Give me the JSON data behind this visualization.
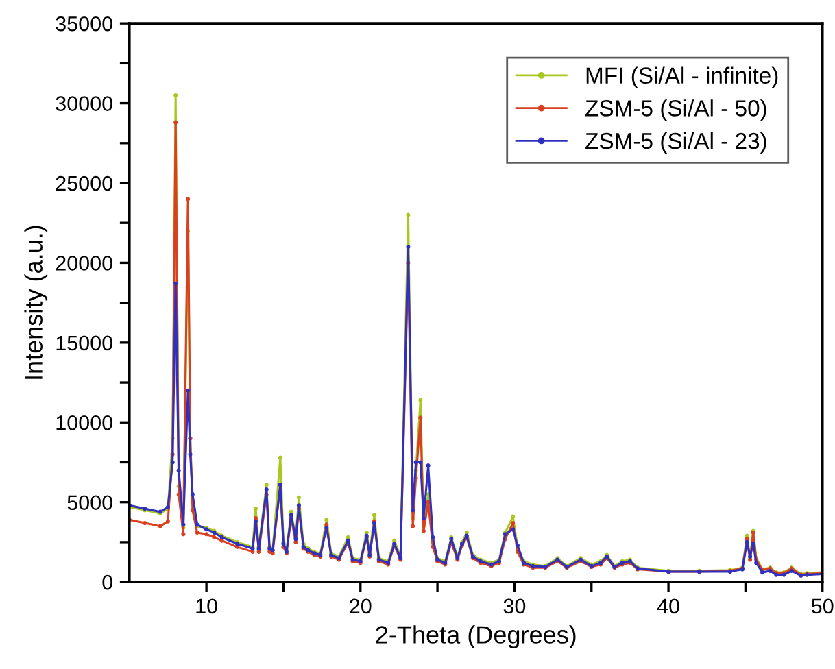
{
  "chart_data": {
    "type": "line",
    "xlabel": "2-Theta (Degrees)",
    "ylabel": "Intensity (a.u.)",
    "x": [
      5,
      6,
      7,
      7.5,
      7.8,
      8.0,
      8.2,
      8.5,
      8.8,
      8.95,
      9.1,
      9.4,
      10,
      10.5,
      11,
      12,
      13,
      13.2,
      13.4,
      13.9,
      14.1,
      14.3,
      14.8,
      15.0,
      15.2,
      15.5,
      15.8,
      16.0,
      16.3,
      16.6,
      17.0,
      17.4,
      17.8,
      18.1,
      18.6,
      19.2,
      19.5,
      20.0,
      20.4,
      20.6,
      20.9,
      21.2,
      21.8,
      22.2,
      22.6,
      23.1,
      23.4,
      23.6,
      23.9,
      24.1,
      24.4,
      24.7,
      25.0,
      25.5,
      25.9,
      26.3,
      26.6,
      26.9,
      27.3,
      27.8,
      28.5,
      29.0,
      29.4,
      29.9,
      30.2,
      30.6,
      31.2,
      32.0,
      32.8,
      33.4,
      34.3,
      35.0,
      35.6,
      36.0,
      36.5,
      37.0,
      37.5,
      38.0,
      40,
      42,
      44,
      44.8,
      45.1,
      45.3,
      45.5,
      45.7,
      46.1,
      46.6,
      47.0,
      47.5,
      48.0,
      48.6,
      49.0,
      50
    ],
    "series": [
      {
        "name": "MFI (Si/Al - infinite)",
        "color": "#a8c820",
        "values": [
          4700,
          4500,
          4300,
          4600,
          9000,
          30500,
          6000,
          3400,
          22000,
          9000,
          5000,
          3500,
          3400,
          3200,
          2900,
          2500,
          2200,
          4600,
          2200,
          6100,
          2200,
          2000,
          7800,
          2500,
          2000,
          4400,
          2800,
          5300,
          2400,
          2100,
          1900,
          1800,
          3900,
          1800,
          1600,
          2800,
          1500,
          1400,
          3100,
          1800,
          4200,
          1500,
          1300,
          2600,
          1600,
          23000,
          4000,
          7000,
          11400,
          3500,
          5500,
          2500,
          1500,
          1300,
          2800,
          1600,
          2500,
          3100,
          1700,
          1400,
          1200,
          1400,
          3100,
          4100,
          2200,
          1300,
          1100,
          1000,
          1500,
          1000,
          1500,
          1100,
          1300,
          1700,
          1000,
          1300,
          1400,
          900,
          700,
          700,
          750,
          900,
          2900,
          1500,
          3200,
          1500,
          800,
          900,
          600,
          600,
          900,
          500,
          550,
          600
        ]
      },
      {
        "name": "ZSM-5 (Si/Al - 50)",
        "color": "#d84020",
        "values": [
          3900,
          3700,
          3500,
          3800,
          8000,
          28800,
          5500,
          3000,
          24000,
          9000,
          4500,
          3100,
          3000,
          2800,
          2600,
          2200,
          1900,
          4000,
          1900,
          5500,
          1900,
          1800,
          6100,
          2200,
          1800,
          4000,
          2500,
          4600,
          2100,
          1900,
          1700,
          1600,
          3600,
          1600,
          1400,
          2500,
          1300,
          1200,
          2800,
          1600,
          3800,
          1300,
          1100,
          2300,
          1400,
          20000,
          3500,
          6500,
          10300,
          3200,
          5000,
          2200,
          1300,
          1100,
          2500,
          1400,
          2300,
          2800,
          1500,
          1200,
          1000,
          1200,
          2700,
          3700,
          1900,
          1100,
          900,
          900,
          1300,
          900,
          1300,
          950,
          1100,
          1500,
          900,
          1100,
          1200,
          800,
          650,
          650,
          700,
          850,
          2700,
          1400,
          3100,
          1400,
          750,
          850,
          550,
          550,
          850,
          450,
          500,
          550
        ]
      },
      {
        "name": "ZSM-5 (Si/Al - 23)",
        "color": "#3030c0",
        "values": [
          4800,
          4600,
          4400,
          4700,
          7500,
          18700,
          7000,
          3600,
          12000,
          8000,
          5500,
          3600,
          3300,
          3100,
          2800,
          2400,
          2100,
          3800,
          2100,
          5800,
          2100,
          2000,
          6100,
          2400,
          1900,
          4200,
          2700,
          4800,
          2200,
          2000,
          1800,
          1700,
          3400,
          1700,
          1500,
          2600,
          1400,
          1300,
          2900,
          1700,
          3700,
          1400,
          1200,
          2400,
          1500,
          21000,
          4500,
          7500,
          7500,
          4000,
          7300,
          2800,
          1400,
          1200,
          2700,
          1500,
          2400,
          2900,
          1600,
          1300,
          1100,
          1300,
          3000,
          3300,
          2300,
          1200,
          1000,
          950,
          1400,
          950,
          1400,
          1000,
          1200,
          1600,
          950,
          1200,
          1300,
          850,
          650,
          650,
          650,
          800,
          2500,
          1600,
          2400,
          1200,
          600,
          700,
          450,
          450,
          700,
          400,
          450,
          500
        ]
      }
    ],
    "xlim": [
      5,
      50
    ],
    "xticks": [
      10,
      {
        "value": 15,
        "label": null
      },
      20,
      {
        "value": 25,
        "label": null
      },
      30,
      {
        "value": 35,
        "label": null
      },
      40,
      {
        "value": 45,
        "label": null
      },
      50
    ],
    "ylim": [
      0,
      35000
    ],
    "yticks": [
      0,
      {
        "value": 2500,
        "label": null
      },
      5000,
      {
        "value": 7500,
        "label": null
      },
      10000,
      {
        "value": 12500,
        "label": null
      },
      15000,
      {
        "value": 17500,
        "label": null
      },
      20000,
      {
        "value": 22500,
        "label": null
      },
      25000,
      {
        "value": 27500,
        "label": null
      },
      30000,
      {
        "value": 32500,
        "label": null
      },
      35000
    ],
    "legend": "top right",
    "grid": false,
    "marker": "circle",
    "line_style": "solid"
  }
}
